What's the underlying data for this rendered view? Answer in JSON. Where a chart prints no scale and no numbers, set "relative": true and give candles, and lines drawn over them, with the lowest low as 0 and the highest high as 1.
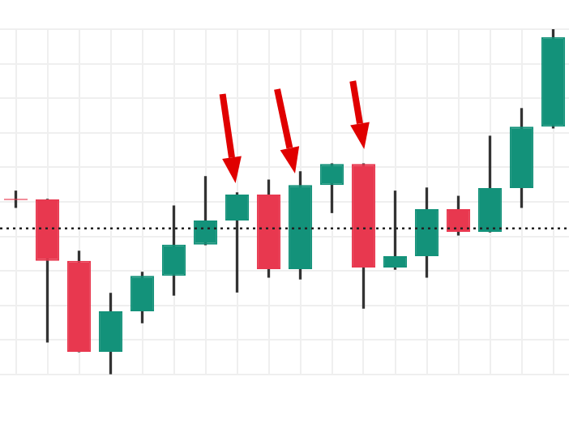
{
  "chart_data": {
    "type": "candlestick",
    "relative": true,
    "grid": true,
    "categories": [
      null,
      null,
      null,
      null,
      null,
      null,
      null,
      null,
      null,
      null,
      null,
      null,
      null,
      null,
      null,
      null,
      null,
      null
    ],
    "ohlc": [
      [
        0.509,
        0.531,
        0.484,
        0.505
      ],
      [
        0.507,
        0.507,
        0.094,
        0.329
      ],
      [
        0.329,
        0.357,
        0.066,
        0.066
      ],
      [
        0.066,
        0.235,
        0,
        0.183
      ],
      [
        0.183,
        0.296,
        0.15,
        0.286
      ],
      [
        0.286,
        0.488,
        0.23,
        0.376
      ],
      [
        0.376,
        0.573,
        0.376,
        0.446
      ],
      [
        0.446,
        0.526,
        0.239,
        0.521
      ],
      [
        0.521,
        0.563,
        0.282,
        0.305
      ],
      [
        0.305,
        0.587,
        0.277,
        0.549
      ],
      [
        0.549,
        0.61,
        0.469,
        0.61
      ],
      [
        0.61,
        0.61,
        0.192,
        0.31
      ],
      [
        0.31,
        0.531,
        0.305,
        0.343
      ],
      [
        0.343,
        0.54,
        0.282,
        0.479
      ],
      [
        0.479,
        0.516,
        0.404,
        0.413
      ],
      [
        0.413,
        0.69,
        0.413,
        0.54
      ],
      [
        0.54,
        0.77,
        0.484,
        0.718
      ],
      [
        0.718,
        1,
        0.714,
        0.977
      ]
    ],
    "colors": [
      "#e8384f",
      "#e8384f",
      "#e8384f",
      "#13927a",
      "#13927a",
      "#13927a",
      "#13927a",
      "#13927a",
      "#e8384f",
      "#13927a",
      "#13927a",
      "#e8384f",
      "#13927a",
      "#13927a",
      "#e8384f",
      "#13927a",
      "#13927a",
      "#13927a"
    ],
    "ref_lines": [
      {
        "axis": "y",
        "value": 0.423,
        "color": "#222222",
        "line_style": "dotted"
      }
    ]
  }
}
